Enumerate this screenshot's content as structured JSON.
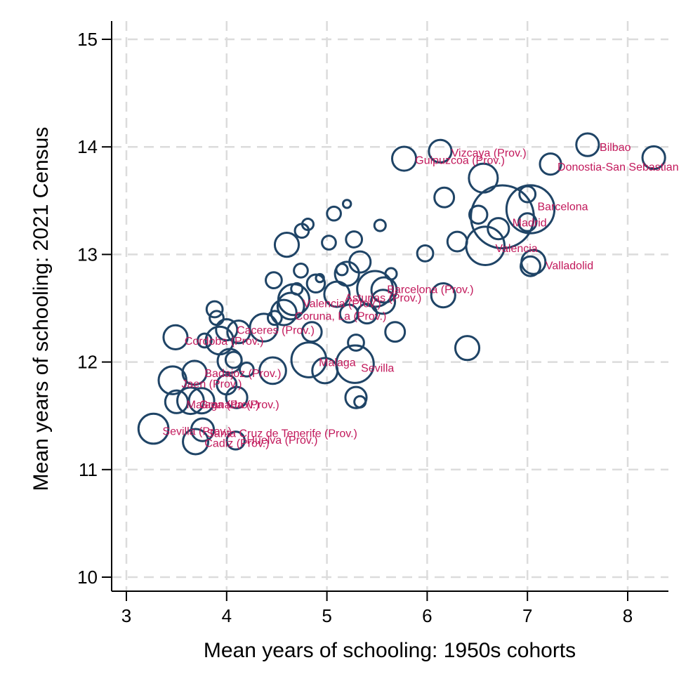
{
  "chart_data": {
    "type": "scatter",
    "title": "",
    "xlabel": "Mean years of schooling: 1950s cohorts",
    "ylabel": "Mean years of schooling: 2021 Census",
    "xlim": [
      2.85,
      8.4
    ],
    "ylim": [
      9.85,
      15.25
    ],
    "xticks": [
      3,
      4,
      5,
      6,
      7,
      8
    ],
    "yticks": [
      10,
      11,
      12,
      13,
      14,
      15
    ],
    "grid": true,
    "marker_color": "#1f4466",
    "label_color": "#c2185b",
    "points": [
      {
        "x": 6.75,
        "y": 13.35,
        "s": 6.2,
        "label": "Madrid",
        "lx": 6.85,
        "ly": 13.3
      },
      {
        "x": 7.03,
        "y": 13.42,
        "s": 3.6,
        "label": "Barcelona",
        "lx": 7.1,
        "ly": 13.45
      },
      {
        "x": 6.58,
        "y": 13.08,
        "s": 2.3,
        "label": "Valencia",
        "lx": 6.68,
        "ly": 13.06
      },
      {
        "x": 5.28,
        "y": 11.98,
        "s": 2.2,
        "label": "Sevilla",
        "lx": 5.34,
        "ly": 11.95
      },
      {
        "x": 4.82,
        "y": 12.02,
        "s": 1.9,
        "label": "Malaga",
        "lx": 4.92,
        "ly": 12.0
      },
      {
        "x": 7.6,
        "y": 14.02,
        "s": 0.8,
        "label": "Bilbao",
        "lx": 7.72,
        "ly": 14.0
      },
      {
        "x": 7.23,
        "y": 13.84,
        "s": 0.7,
        "label": "Donostia-San Sebastian",
        "lx": 7.3,
        "ly": 13.82
      },
      {
        "x": 7.06,
        "y": 12.93,
        "s": 0.9,
        "label": "Valladolid",
        "lx": 7.18,
        "ly": 12.9
      },
      {
        "x": 6.13,
        "y": 13.96,
        "s": 0.8,
        "label": "Vizcaya (Prov.)",
        "lx": 6.24,
        "ly": 13.95
      },
      {
        "x": 5.77,
        "y": 13.89,
        "s": 0.9,
        "label": "Guipuzcoa (Prov.)",
        "lx": 5.88,
        "ly": 13.88
      },
      {
        "x": 5.57,
        "y": 12.67,
        "s": 1.0,
        "label": "Barcelona (Prov.)",
        "lx": 5.6,
        "ly": 12.68
      },
      {
        "x": 5.48,
        "y": 12.68,
        "s": 2.0,
        "label": "Asturias (Prov.)",
        "lx": 5.18,
        "ly": 12.6
      },
      {
        "x": 4.67,
        "y": 12.58,
        "s": 1.5,
        "label": "Valencia (Prov.)",
        "lx": 4.76,
        "ly": 12.55
      },
      {
        "x": 4.57,
        "y": 12.46,
        "s": 1.0,
        "label": "Coruna, La (Prov.)",
        "lx": 4.68,
        "ly": 12.43
      },
      {
        "x": 4.37,
        "y": 12.32,
        "s": 1.2,
        "label": "Caceres (Prov.)",
        "lx": 4.1,
        "ly": 12.3
      },
      {
        "x": 3.93,
        "y": 12.2,
        "s": 1.2,
        "label": "Cordoba (Prov.)",
        "lx": 3.58,
        "ly": 12.2
      },
      {
        "x": 4.46,
        "y": 11.92,
        "s": 1.1,
        "label": "Badajoz (Prov.)",
        "lx": 3.78,
        "ly": 11.9
      },
      {
        "x": 3.46,
        "y": 11.83,
        "s": 1.2,
        "label": "Jaen (Prov.)",
        "lx": 3.55,
        "ly": 11.8
      },
      {
        "x": 3.64,
        "y": 11.64,
        "s": 1.1,
        "label": "Malaga (Prov.)",
        "lx": 3.6,
        "ly": 11.61
      },
      {
        "x": 3.75,
        "y": 11.64,
        "s": 1.0,
        "label": "Granada (Prov.)",
        "lx": 3.73,
        "ly": 11.61
      },
      {
        "x": 3.27,
        "y": 11.38,
        "s": 1.4,
        "label": "Sevilla (Prov.)",
        "lx": 3.36,
        "ly": 11.36
      },
      {
        "x": 3.76,
        "y": 11.37,
        "s": 0.8,
        "label": "Santa Cruz de Tenerife (Prov.)",
        "lx": 3.8,
        "ly": 11.34
      },
      {
        "x": 3.69,
        "y": 11.26,
        "s": 1.0,
        "label": "Cadiz (Prov.)",
        "lx": 3.78,
        "ly": 11.25
      },
      {
        "x": 4.09,
        "y": 11.27,
        "s": 0.5,
        "label": "Huelva (Prov.)",
        "lx": 4.2,
        "ly": 11.28
      },
      {
        "x": 8.26,
        "y": 13.9,
        "s": 0.8,
        "label": "",
        "lx": 0,
        "ly": 0
      },
      {
        "x": 6.56,
        "y": 13.71,
        "s": 1.3,
        "label": "",
        "lx": 0,
        "ly": 0
      },
      {
        "x": 6.17,
        "y": 13.53,
        "s": 0.6,
        "label": "",
        "lx": 0,
        "ly": 0
      },
      {
        "x": 6.51,
        "y": 13.37,
        "s": 0.5,
        "label": "",
        "lx": 0,
        "ly": 0
      },
      {
        "x": 7.0,
        "y": 13.56,
        "s": 0.4,
        "label": "",
        "lx": 0,
        "ly": 0
      },
      {
        "x": 7.0,
        "y": 13.3,
        "s": 0.5,
        "label": "",
        "lx": 0,
        "ly": 0
      },
      {
        "x": 6.71,
        "y": 13.24,
        "s": 0.7,
        "label": "",
        "lx": 0,
        "ly": 0
      },
      {
        "x": 6.3,
        "y": 13.12,
        "s": 0.6,
        "label": "",
        "lx": 0,
        "ly": 0
      },
      {
        "x": 5.98,
        "y": 13.01,
        "s": 0.4,
        "label": "",
        "lx": 0,
        "ly": 0
      },
      {
        "x": 7.03,
        "y": 12.89,
        "s": 0.6,
        "label": "",
        "lx": 0,
        "ly": 0
      },
      {
        "x": 6.4,
        "y": 12.13,
        "s": 0.9,
        "label": "",
        "lx": 0,
        "ly": 0
      },
      {
        "x": 6.16,
        "y": 12.62,
        "s": 0.9,
        "label": "",
        "lx": 0,
        "ly": 0
      },
      {
        "x": 5.68,
        "y": 12.28,
        "s": 0.6,
        "label": "",
        "lx": 0,
        "ly": 0
      },
      {
        "x": 5.64,
        "y": 12.82,
        "s": 0.2,
        "label": "",
        "lx": 0,
        "ly": 0
      },
      {
        "x": 5.53,
        "y": 13.27,
        "s": 0.2,
        "label": "",
        "lx": 0,
        "ly": 0
      },
      {
        "x": 5.33,
        "y": 12.93,
        "s": 0.7,
        "label": "",
        "lx": 0,
        "ly": 0
      },
      {
        "x": 5.2,
        "y": 13.47,
        "s": 0.1,
        "label": "",
        "lx": 0,
        "ly": 0
      },
      {
        "x": 5.07,
        "y": 13.38,
        "s": 0.3,
        "label": "",
        "lx": 0,
        "ly": 0
      },
      {
        "x": 5.27,
        "y": 13.14,
        "s": 0.4,
        "label": "",
        "lx": 0,
        "ly": 0
      },
      {
        "x": 5.02,
        "y": 13.11,
        "s": 0.3,
        "label": "",
        "lx": 0,
        "ly": 0
      },
      {
        "x": 5.2,
        "y": 12.82,
        "s": 0.9,
        "label": "",
        "lx": 0,
        "ly": 0
      },
      {
        "x": 5.15,
        "y": 12.86,
        "s": 0.2,
        "label": "",
        "lx": 0,
        "ly": 0
      },
      {
        "x": 5.1,
        "y": 12.63,
        "s": 1.0,
        "label": "",
        "lx": 0,
        "ly": 0
      },
      {
        "x": 5.56,
        "y": 12.56,
        "s": 0.9,
        "label": "",
        "lx": 0,
        "ly": 0
      },
      {
        "x": 5.4,
        "y": 12.45,
        "s": 0.6,
        "label": "",
        "lx": 0,
        "ly": 0
      },
      {
        "x": 5.22,
        "y": 12.45,
        "s": 0.5,
        "label": "",
        "lx": 0,
        "ly": 0
      },
      {
        "x": 5.29,
        "y": 12.18,
        "s": 0.4,
        "label": "",
        "lx": 0,
        "ly": 0
      },
      {
        "x": 4.6,
        "y": 13.09,
        "s": 0.9,
        "label": "",
        "lx": 0,
        "ly": 0
      },
      {
        "x": 4.75,
        "y": 13.22,
        "s": 0.3,
        "label": "",
        "lx": 0,
        "ly": 0
      },
      {
        "x": 4.81,
        "y": 13.28,
        "s": 0.2,
        "label": "",
        "lx": 0,
        "ly": 0
      },
      {
        "x": 4.74,
        "y": 12.85,
        "s": 0.3,
        "label": "",
        "lx": 0,
        "ly": 0
      },
      {
        "x": 4.47,
        "y": 12.76,
        "s": 0.4,
        "label": "",
        "lx": 0,
        "ly": 0
      },
      {
        "x": 4.89,
        "y": 12.73,
        "s": 0.5,
        "label": "",
        "lx": 0,
        "ly": 0
      },
      {
        "x": 4.93,
        "y": 12.78,
        "s": 0.1,
        "label": "",
        "lx": 0,
        "ly": 0
      },
      {
        "x": 4.64,
        "y": 12.52,
        "s": 1.1,
        "label": "",
        "lx": 0,
        "ly": 0
      },
      {
        "x": 4.7,
        "y": 12.68,
        "s": 0.2,
        "label": "",
        "lx": 0,
        "ly": 0
      },
      {
        "x": 4.48,
        "y": 12.41,
        "s": 0.3,
        "label": "",
        "lx": 0,
        "ly": 0
      },
      {
        "x": 4.85,
        "y": 12.28,
        "s": 0.6,
        "label": "",
        "lx": 0,
        "ly": 0
      },
      {
        "x": 4.12,
        "y": 12.28,
        "s": 0.8,
        "label": "",
        "lx": 0,
        "ly": 0
      },
      {
        "x": 3.88,
        "y": 12.49,
        "s": 0.4,
        "label": "",
        "lx": 0,
        "ly": 0
      },
      {
        "x": 3.9,
        "y": 12.41,
        "s": 0.3,
        "label": "",
        "lx": 0,
        "ly": 0
      },
      {
        "x": 4.0,
        "y": 12.3,
        "s": 0.7,
        "label": "",
        "lx": 0,
        "ly": 0
      },
      {
        "x": 3.49,
        "y": 12.23,
        "s": 0.9,
        "label": "",
        "lx": 0,
        "ly": 0
      },
      {
        "x": 3.78,
        "y": 12.2,
        "s": 0.3,
        "label": "",
        "lx": 0,
        "ly": 0
      },
      {
        "x": 4.03,
        "y": 12.01,
        "s": 0.9,
        "label": "",
        "lx": 0,
        "ly": 0
      },
      {
        "x": 4.07,
        "y": 12.02,
        "s": 0.4,
        "label": "",
        "lx": 0,
        "ly": 0
      },
      {
        "x": 4.2,
        "y": 11.93,
        "s": 0.3,
        "label": "",
        "lx": 0,
        "ly": 0
      },
      {
        "x": 3.68,
        "y": 11.9,
        "s": 0.9,
        "label": "",
        "lx": 0,
        "ly": 0
      },
      {
        "x": 4.0,
        "y": 11.79,
        "s": 0.6,
        "label": "",
        "lx": 0,
        "ly": 0
      },
      {
        "x": 3.5,
        "y": 11.63,
        "s": 0.8,
        "label": "",
        "lx": 0,
        "ly": 0
      },
      {
        "x": 4.1,
        "y": 11.67,
        "s": 0.7,
        "label": "",
        "lx": 0,
        "ly": 0
      },
      {
        "x": 4.98,
        "y": 11.92,
        "s": 1.0,
        "label": "",
        "lx": 0,
        "ly": 0
      },
      {
        "x": 5.29,
        "y": 11.67,
        "s": 0.7,
        "label": "",
        "lx": 0,
        "ly": 0
      },
      {
        "x": 5.33,
        "y": 11.63,
        "s": 0.2,
        "label": "",
        "lx": 0,
        "ly": 0
      }
    ]
  }
}
